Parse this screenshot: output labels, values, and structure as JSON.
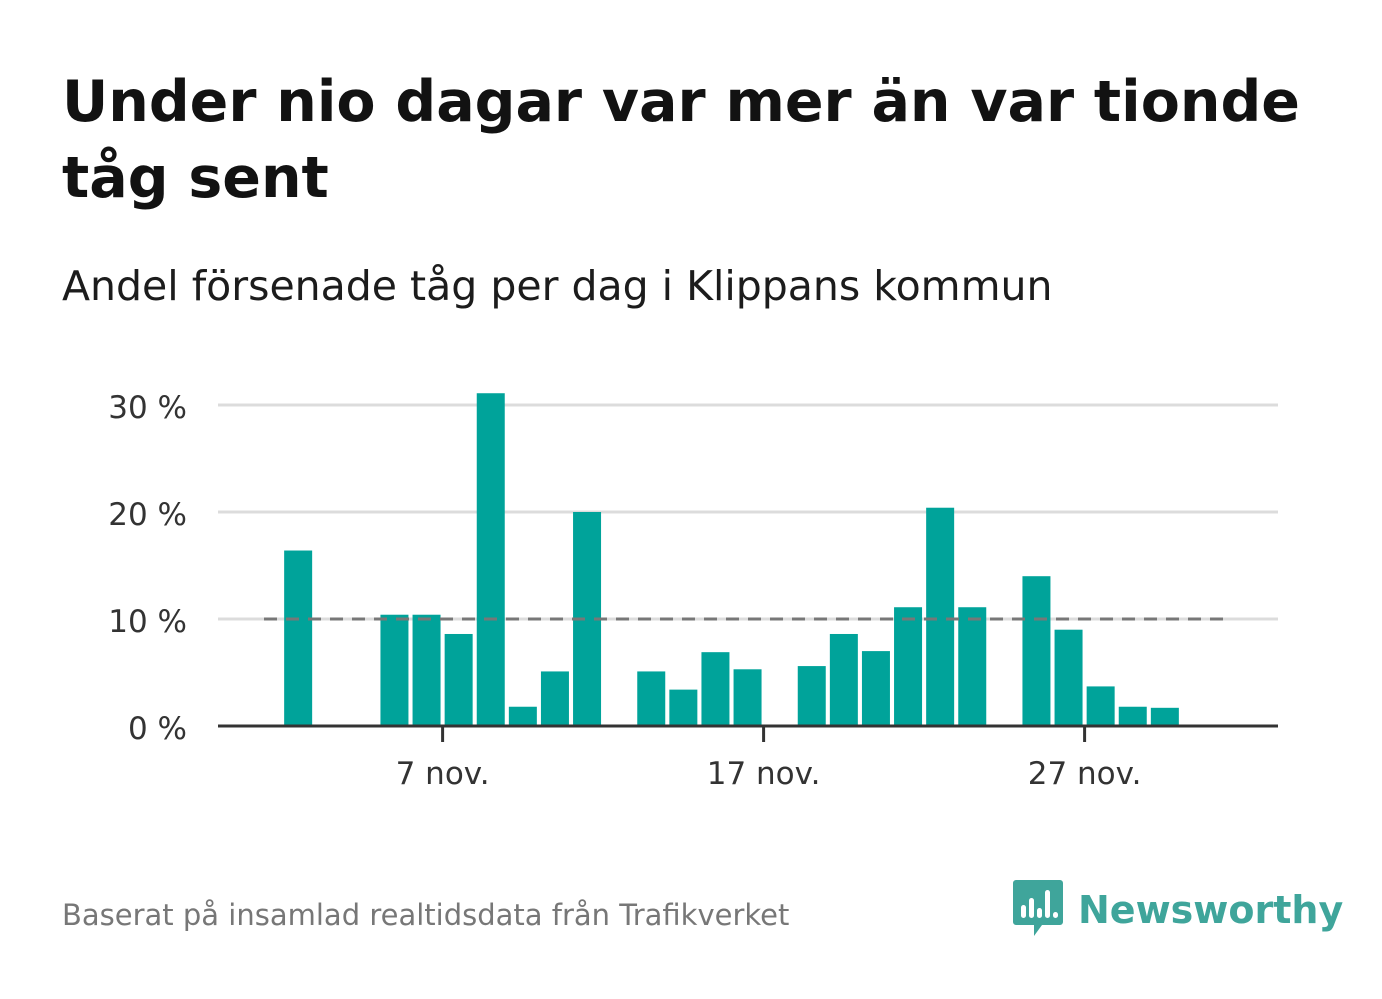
{
  "title": "Under nio dagar var mer än var tionde tåg sent",
  "subtitle": "Andel försenade tåg per dag i Klippans kommun",
  "footer": "Baserat på insamlad realtidsdata från Trafikverket",
  "brand": {
    "name": "Newsworthy",
    "color": "#3fa59b",
    "icon": "newsworthy-logo-icon"
  },
  "colors": {
    "bar": "#00a39a",
    "gridline": "#dcdcdc",
    "axis": "#333333",
    "reference": "#777777"
  },
  "chart_data": {
    "type": "bar",
    "title": "Andel försenade tåg per dag i Klippans kommun",
    "xlabel": "",
    "ylabel": "",
    "ylim": [
      0,
      30
    ],
    "yticks": [
      0,
      10,
      20,
      30
    ],
    "ytick_labels": [
      "0 %",
      "10 %",
      "20 %",
      "30 %"
    ],
    "xtick_labels": [
      {
        "day": 7,
        "label": "7 nov."
      },
      {
        "day": 17,
        "label": "17 nov."
      },
      {
        "day": 27,
        "label": "27 nov."
      }
    ],
    "x_range_days": [
      1,
      30
    ],
    "reference_line": {
      "value": 10,
      "style": "dashed"
    },
    "grid": true,
    "series": [
      {
        "values": [
          {
            "day": 2,
            "value": 16.4
          },
          {
            "day": 5,
            "value": 10.4
          },
          {
            "day": 6,
            "value": 10.4
          },
          {
            "day": 7,
            "value": 8.6
          },
          {
            "day": 8,
            "value": 31.1
          },
          {
            "day": 9,
            "value": 1.8
          },
          {
            "day": 10,
            "value": 5.1
          },
          {
            "day": 11,
            "value": 20.0
          },
          {
            "day": 13,
            "value": 5.1
          },
          {
            "day": 14,
            "value": 3.4
          },
          {
            "day": 15,
            "value": 6.9
          },
          {
            "day": 16,
            "value": 5.3
          },
          {
            "day": 18,
            "value": 5.6
          },
          {
            "day": 19,
            "value": 8.6
          },
          {
            "day": 20,
            "value": 7.0
          },
          {
            "day": 21,
            "value": 11.1
          },
          {
            "day": 22,
            "value": 20.4
          },
          {
            "day": 23,
            "value": 11.1
          },
          {
            "day": 25,
            "value": 14.0
          },
          {
            "day": 26,
            "value": 9.0
          },
          {
            "day": 27,
            "value": 3.7
          },
          {
            "day": 28,
            "value": 1.8
          },
          {
            "day": 29,
            "value": 1.7
          }
        ]
      }
    ]
  }
}
